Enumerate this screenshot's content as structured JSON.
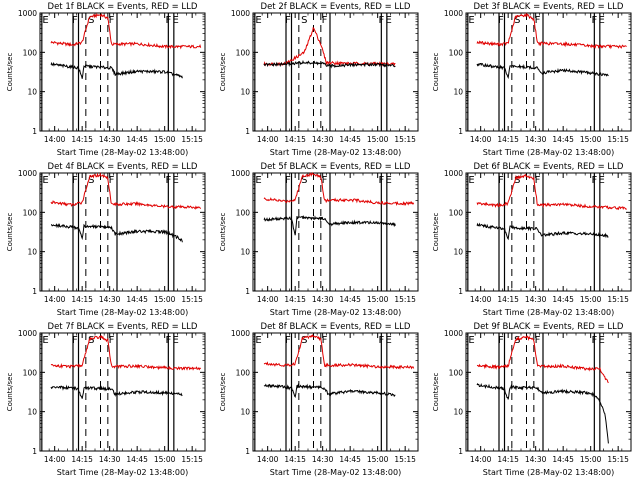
{
  "figure": {
    "start_time_label": "Start Time (28-May-02 13:48:00)",
    "ylabel": "Counts/sec",
    "colors": {
      "events": "#000000",
      "lld": "#e00000",
      "axes": "#000000"
    }
  },
  "panel_titles": [
    "Det 1f BLACK = Events, RED = LLD",
    "Det 2f BLACK = Events, RED = LLD",
    "Det 3f BLACK = Events, RED = LLD",
    "Det 4f BLACK = Events, RED = LLD",
    "Det 5f BLACK = Events, RED = LLD",
    "Det 6f BLACK = Events, RED = LLD",
    "Det 7f BLACK = Events, RED = LLD",
    "Det 8f BLACK = Events, RED = LLD",
    "Det 9f BLACK = Events, RED = LLD"
  ],
  "chart_data": {
    "type": "line",
    "layout": "3x3 grid",
    "x_unit": "time (UT, 28-May-02)",
    "xlim": [
      "13:52",
      "15:22"
    ],
    "x_tick_labels": [
      "14:00",
      "14:15",
      "14:30",
      "14:45",
      "15:00",
      "15:15"
    ],
    "y_scale": "log",
    "ylim": [
      1,
      1000
    ],
    "y_tick_labels": [
      "1",
      "10",
      "100",
      "1000"
    ],
    "interval_labels": [
      "E",
      "F",
      "S",
      "F",
      "F",
      "E"
    ],
    "interval_lines_solid": [
      "13:53",
      "14:10",
      "14:13",
      "14:34",
      "15:02",
      "15:05"
    ],
    "interval_lines_dashed": [
      "14:17",
      "14:25",
      "14:29"
    ],
    "series": [
      {
        "name": "Events",
        "color": "#000000"
      },
      {
        "name": "LLD",
        "color": "#e00000"
      }
    ],
    "panels": [
      {
        "lld": [
          [
            "13:58",
            180
          ],
          [
            "14:10",
            155
          ],
          [
            "14:15",
            180
          ],
          [
            "14:19",
            800
          ],
          [
            "14:25",
            900
          ],
          [
            "14:29",
            750
          ],
          [
            "14:31",
            160
          ],
          [
            "14:45",
            165
          ],
          [
            "15:00",
            140
          ],
          [
            "15:15",
            140
          ],
          [
            "15:20",
            140
          ]
        ],
        "events": [
          [
            "13:58",
            50
          ],
          [
            "14:10",
            42
          ],
          [
            "14:13",
            40
          ],
          [
            "14:15",
            22
          ],
          [
            "14:16",
            45
          ],
          [
            "14:31",
            40
          ],
          [
            "14:33",
            28
          ],
          [
            "14:45",
            33
          ],
          [
            "15:00",
            32
          ],
          [
            "15:08",
            25
          ],
          [
            "15:10",
            23
          ]
        ]
      },
      {
        "lld": [
          [
            "13:58",
            50
          ],
          [
            "14:10",
            52
          ],
          [
            "14:20",
            100
          ],
          [
            "14:25",
            420
          ],
          [
            "14:29",
            160
          ],
          [
            "14:32",
            55
          ],
          [
            "14:45",
            52
          ],
          [
            "15:00",
            52
          ],
          [
            "15:10",
            50
          ]
        ],
        "events": [
          [
            "13:58",
            48
          ],
          [
            "14:10",
            50
          ],
          [
            "14:20",
            55
          ],
          [
            "14:30",
            52
          ],
          [
            "14:33",
            45
          ],
          [
            "14:45",
            48
          ],
          [
            "15:00",
            50
          ],
          [
            "15:10",
            45
          ]
        ]
      },
      {
        "lld": [
          [
            "13:58",
            180
          ],
          [
            "14:10",
            160
          ],
          [
            "14:15",
            170
          ],
          [
            "14:19",
            800
          ],
          [
            "14:25",
            900
          ],
          [
            "14:29",
            700
          ],
          [
            "14:31",
            170
          ],
          [
            "14:45",
            165
          ],
          [
            "15:00",
            145
          ],
          [
            "15:15",
            140
          ],
          [
            "15:20",
            140
          ]
        ],
        "events": [
          [
            "13:58",
            50
          ],
          [
            "14:10",
            42
          ],
          [
            "14:13",
            40
          ],
          [
            "14:15",
            22
          ],
          [
            "14:16",
            45
          ],
          [
            "14:31",
            40
          ],
          [
            "14:33",
            30
          ],
          [
            "14:45",
            35
          ],
          [
            "15:00",
            30
          ],
          [
            "15:10",
            26
          ]
        ]
      },
      {
        "lld": [
          [
            "13:58",
            180
          ],
          [
            "14:10",
            155
          ],
          [
            "14:15",
            180
          ],
          [
            "14:19",
            800
          ],
          [
            "14:25",
            900
          ],
          [
            "14:29",
            750
          ],
          [
            "14:31",
            160
          ],
          [
            "14:45",
            165
          ],
          [
            "15:00",
            140
          ],
          [
            "15:15",
            135
          ],
          [
            "15:20",
            130
          ]
        ],
        "events": [
          [
            "13:58",
            48
          ],
          [
            "14:10",
            42
          ],
          [
            "14:13",
            40
          ],
          [
            "14:15",
            22
          ],
          [
            "14:16",
            45
          ],
          [
            "14:31",
            40
          ],
          [
            "14:33",
            28
          ],
          [
            "14:45",
            33
          ],
          [
            "15:00",
            32
          ],
          [
            "15:08",
            22
          ],
          [
            "15:10",
            18
          ]
        ]
      },
      {
        "lld": [
          [
            "13:58",
            220
          ],
          [
            "14:10",
            190
          ],
          [
            "14:15",
            210
          ],
          [
            "14:19",
            850
          ],
          [
            "14:25",
            950
          ],
          [
            "14:29",
            800
          ],
          [
            "14:31",
            200
          ],
          [
            "14:45",
            210
          ],
          [
            "15:00",
            175
          ],
          [
            "15:15",
            170
          ],
          [
            "15:20",
            170
          ]
        ],
        "events": [
          [
            "13:58",
            65
          ],
          [
            "14:10",
            70
          ],
          [
            "14:13",
            70
          ],
          [
            "14:15",
            25
          ],
          [
            "14:16",
            75
          ],
          [
            "14:31",
            70
          ],
          [
            "14:33",
            50
          ],
          [
            "14:45",
            55
          ],
          [
            "15:00",
            55
          ],
          [
            "15:10",
            48
          ]
        ]
      },
      {
        "lld": [
          [
            "13:58",
            170
          ],
          [
            "14:10",
            150
          ],
          [
            "14:15",
            170
          ],
          [
            "14:19",
            750
          ],
          [
            "14:25",
            850
          ],
          [
            "14:29",
            700
          ],
          [
            "14:31",
            150
          ],
          [
            "14:45",
            160
          ],
          [
            "15:00",
            140
          ],
          [
            "15:15",
            130
          ],
          [
            "15:20",
            130
          ]
        ],
        "events": [
          [
            "13:58",
            48
          ],
          [
            "14:10",
            40
          ],
          [
            "14:13",
            38
          ],
          [
            "14:15",
            20
          ],
          [
            "14:16",
            42
          ],
          [
            "14:31",
            38
          ],
          [
            "14:33",
            26
          ],
          [
            "14:45",
            30
          ],
          [
            "15:00",
            28
          ],
          [
            "15:10",
            25
          ]
        ]
      },
      {
        "lld": [
          [
            "13:58",
            150
          ],
          [
            "14:10",
            140
          ],
          [
            "14:15",
            150
          ],
          [
            "14:19",
            700
          ],
          [
            "14:25",
            800
          ],
          [
            "14:29",
            650
          ],
          [
            "14:31",
            140
          ],
          [
            "14:45",
            145
          ],
          [
            "15:00",
            130
          ],
          [
            "15:15",
            125
          ],
          [
            "15:20",
            125
          ]
        ],
        "events": [
          [
            "13:58",
            42
          ],
          [
            "14:10",
            40
          ],
          [
            "14:13",
            38
          ],
          [
            "14:15",
            20
          ],
          [
            "14:16",
            40
          ],
          [
            "14:31",
            38
          ],
          [
            "14:33",
            28
          ],
          [
            "14:45",
            32
          ],
          [
            "15:00",
            30
          ],
          [
            "15:10",
            27
          ]
        ]
      },
      {
        "lld": [
          [
            "13:58",
            170
          ],
          [
            "14:10",
            150
          ],
          [
            "14:15",
            165
          ],
          [
            "14:19",
            750
          ],
          [
            "14:25",
            850
          ],
          [
            "14:29",
            700
          ],
          [
            "14:31",
            150
          ],
          [
            "14:45",
            155
          ],
          [
            "15:00",
            140
          ],
          [
            "15:15",
            135
          ],
          [
            "15:20",
            135
          ]
        ],
        "events": [
          [
            "13:58",
            48
          ],
          [
            "14:10",
            42
          ],
          [
            "14:13",
            40
          ],
          [
            "14:15",
            22
          ],
          [
            "14:16",
            45
          ],
          [
            "14:31",
            40
          ],
          [
            "14:33",
            28
          ],
          [
            "14:45",
            33
          ],
          [
            "15:00",
            30
          ],
          [
            "15:08",
            27
          ],
          [
            "15:10",
            25
          ]
        ]
      },
      {
        "lld": [
          [
            "13:58",
            150
          ],
          [
            "14:10",
            135
          ],
          [
            "14:15",
            145
          ],
          [
            "14:19",
            700
          ],
          [
            "14:25",
            800
          ],
          [
            "14:29",
            650
          ],
          [
            "14:31",
            140
          ],
          [
            "14:45",
            145
          ],
          [
            "15:00",
            120
          ],
          [
            "15:05",
            125
          ],
          [
            "15:08",
            70
          ],
          [
            "15:10",
            55
          ]
        ],
        "events": [
          [
            "13:58",
            48
          ],
          [
            "14:10",
            40
          ],
          [
            "14:13",
            38
          ],
          [
            "14:15",
            20
          ],
          [
            "14:16",
            42
          ],
          [
            "14:31",
            40
          ],
          [
            "14:33",
            30
          ],
          [
            "14:45",
            33
          ],
          [
            "15:00",
            30
          ],
          [
            "15:04",
            22
          ],
          [
            "15:06",
            15
          ],
          [
            "15:08",
            8
          ],
          [
            "15:10",
            1.2
          ]
        ]
      }
    ]
  }
}
